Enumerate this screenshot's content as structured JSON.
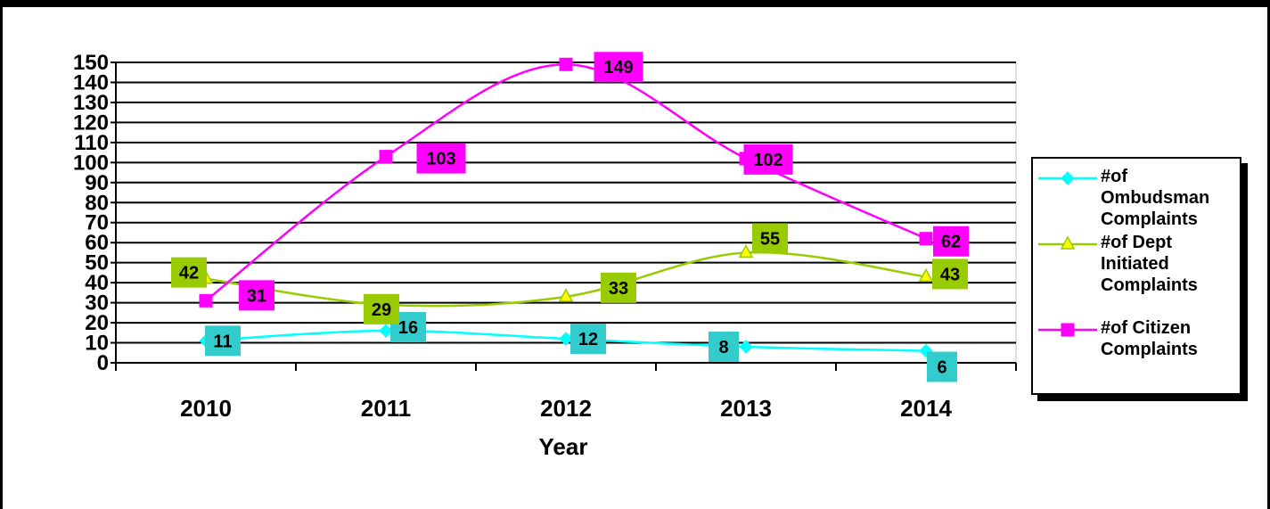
{
  "chart_data": {
    "type": "line",
    "title": "",
    "xlabel": "Year",
    "ylabel": "",
    "categories": [
      "2010",
      "2011",
      "2012",
      "2013",
      "2014"
    ],
    "ylim": [
      0,
      150
    ],
    "yticks": [
      "0",
      "10",
      "20",
      "30",
      "40",
      "50",
      "60",
      "70",
      "80",
      "90",
      "100",
      "110",
      "120",
      "130",
      "140",
      "150"
    ],
    "grid": true,
    "legend_position": "right",
    "series": [
      {
        "name": "#of Ombudsman Complaints",
        "values": [
          11,
          16,
          12,
          8,
          6
        ],
        "color": "#00FFFF",
        "label_bg": "#33CCCC",
        "marker": "diamond"
      },
      {
        "name": "#of Dept Initiated Complaints",
        "values": [
          42,
          29,
          33,
          55,
          43
        ],
        "color": "#99CC00",
        "label_bg": "#99CC00",
        "marker": "triangle",
        "marker_fill": "#FFFF00"
      },
      {
        "name": "#of Citizen Complaints",
        "values": [
          31,
          103,
          149,
          102,
          62
        ],
        "color": "#FF00FF",
        "label_bg": "#FF00FF",
        "marker": "square"
      }
    ]
  }
}
